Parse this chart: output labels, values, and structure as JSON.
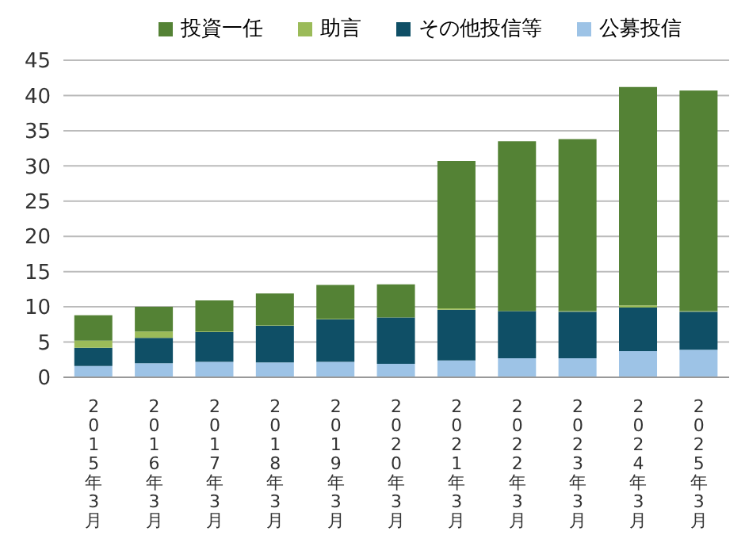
{
  "chart_data": {
    "type": "bar",
    "stacked": true,
    "categories": [
      "2015年3月",
      "2016年3月",
      "2017年3月",
      "2018年3月",
      "2019年3月",
      "2020年3月",
      "2021年3月",
      "2022年3月",
      "2023年3月",
      "2024年3月",
      "2025年3月"
    ],
    "series": [
      {
        "name": "公募投信",
        "color": "#9dc3e6",
        "values": [
          1.6,
          2.0,
          2.2,
          2.1,
          2.2,
          1.9,
          2.4,
          2.7,
          2.7,
          3.7,
          3.9
        ]
      },
      {
        "name": "その他投信等",
        "color": "#0f4f66",
        "values": [
          2.6,
          3.6,
          4.2,
          5.2,
          6.0,
          6.6,
          7.2,
          6.7,
          6.6,
          6.2,
          5.4
        ]
      },
      {
        "name": "助言",
        "color": "#9bbb59",
        "values": [
          1.0,
          0.9,
          0.1,
          0.1,
          0.1,
          null,
          0.2,
          null,
          0.1,
          0.3,
          0.1
        ]
      },
      {
        "name": "投資一任",
        "color": "#548235",
        "values": [
          3.6,
          3.5,
          4.4,
          4.5,
          4.8,
          4.7,
          20.9,
          24.1,
          24.4,
          31.0,
          31.3
        ]
      }
    ],
    "ylim": [
      0,
      45
    ],
    "yticks": [
      0,
      5,
      10,
      15,
      20,
      25,
      30,
      35,
      40,
      45
    ],
    "grid": "y",
    "legend": "top"
  }
}
